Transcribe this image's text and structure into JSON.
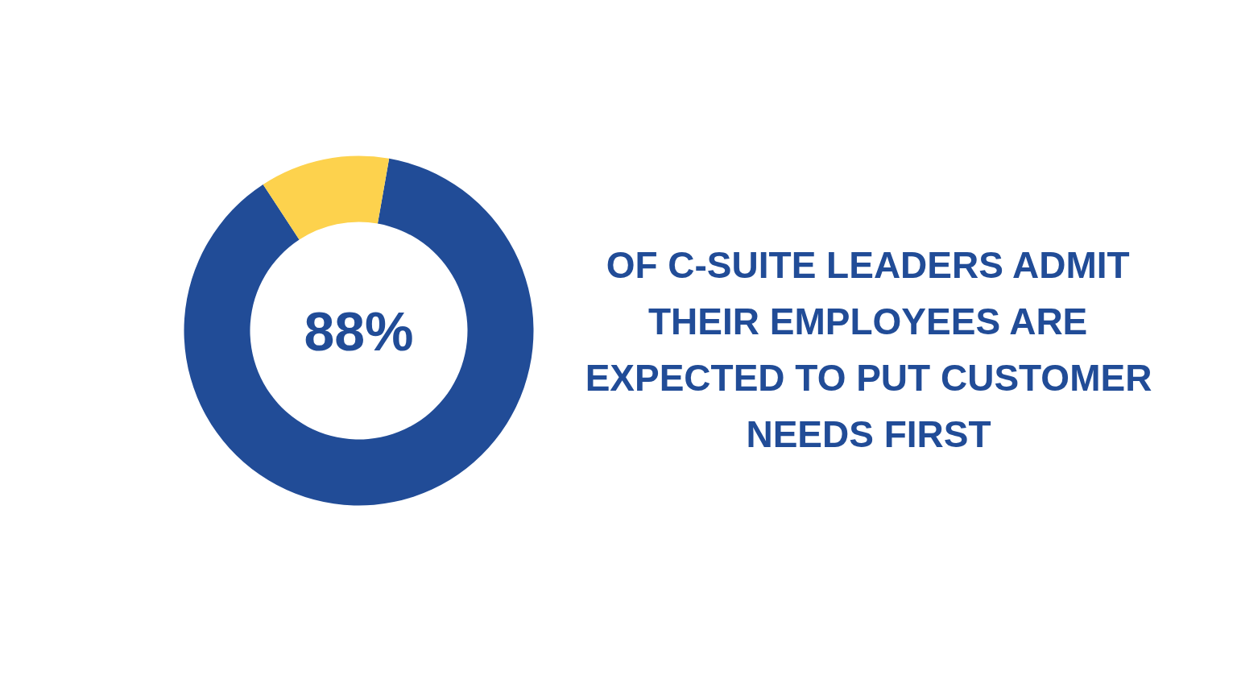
{
  "chart_data": {
    "type": "donut",
    "categories": [
      null,
      null
    ],
    "values": [
      88,
      12
    ],
    "colors": [
      "#214c97",
      "#fdd24d"
    ],
    "value_labels": [
      "88%",
      null
    ],
    "annotations": [
      "OF C-SUITE LEADERS ADMIT THEIR EMPLOYEES ARE EXPECTED TO PUT CUSTOMER NEEDS FIRST"
    ]
  }
}
